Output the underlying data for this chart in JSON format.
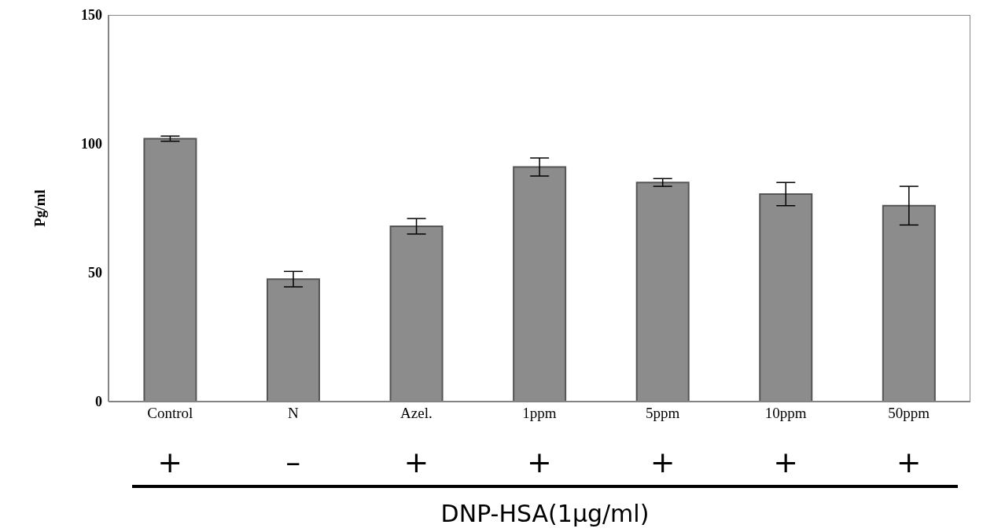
{
  "chart_data": {
    "type": "bar",
    "ylabel": "Pg/ml",
    "categories": [
      "Control",
      "N",
      "Azel.",
      "1ppm",
      "5ppm",
      "10ppm",
      "50ppm"
    ],
    "values": [
      102,
      47.5,
      68,
      91,
      85,
      80.5,
      76
    ],
    "errors": [
      1,
      3,
      3,
      3.5,
      1.5,
      4.5,
      7.5
    ],
    "color": "#8c8c8c",
    "ylim": [
      0,
      150
    ],
    "yticks": [
      0,
      50,
      100,
      150
    ],
    "grid": false,
    "legend": false,
    "annotations": [
      "+",
      "–",
      "+",
      "+",
      "+",
      "+",
      "+",
      "DNP-HSA(1μg/ml)"
    ]
  }
}
